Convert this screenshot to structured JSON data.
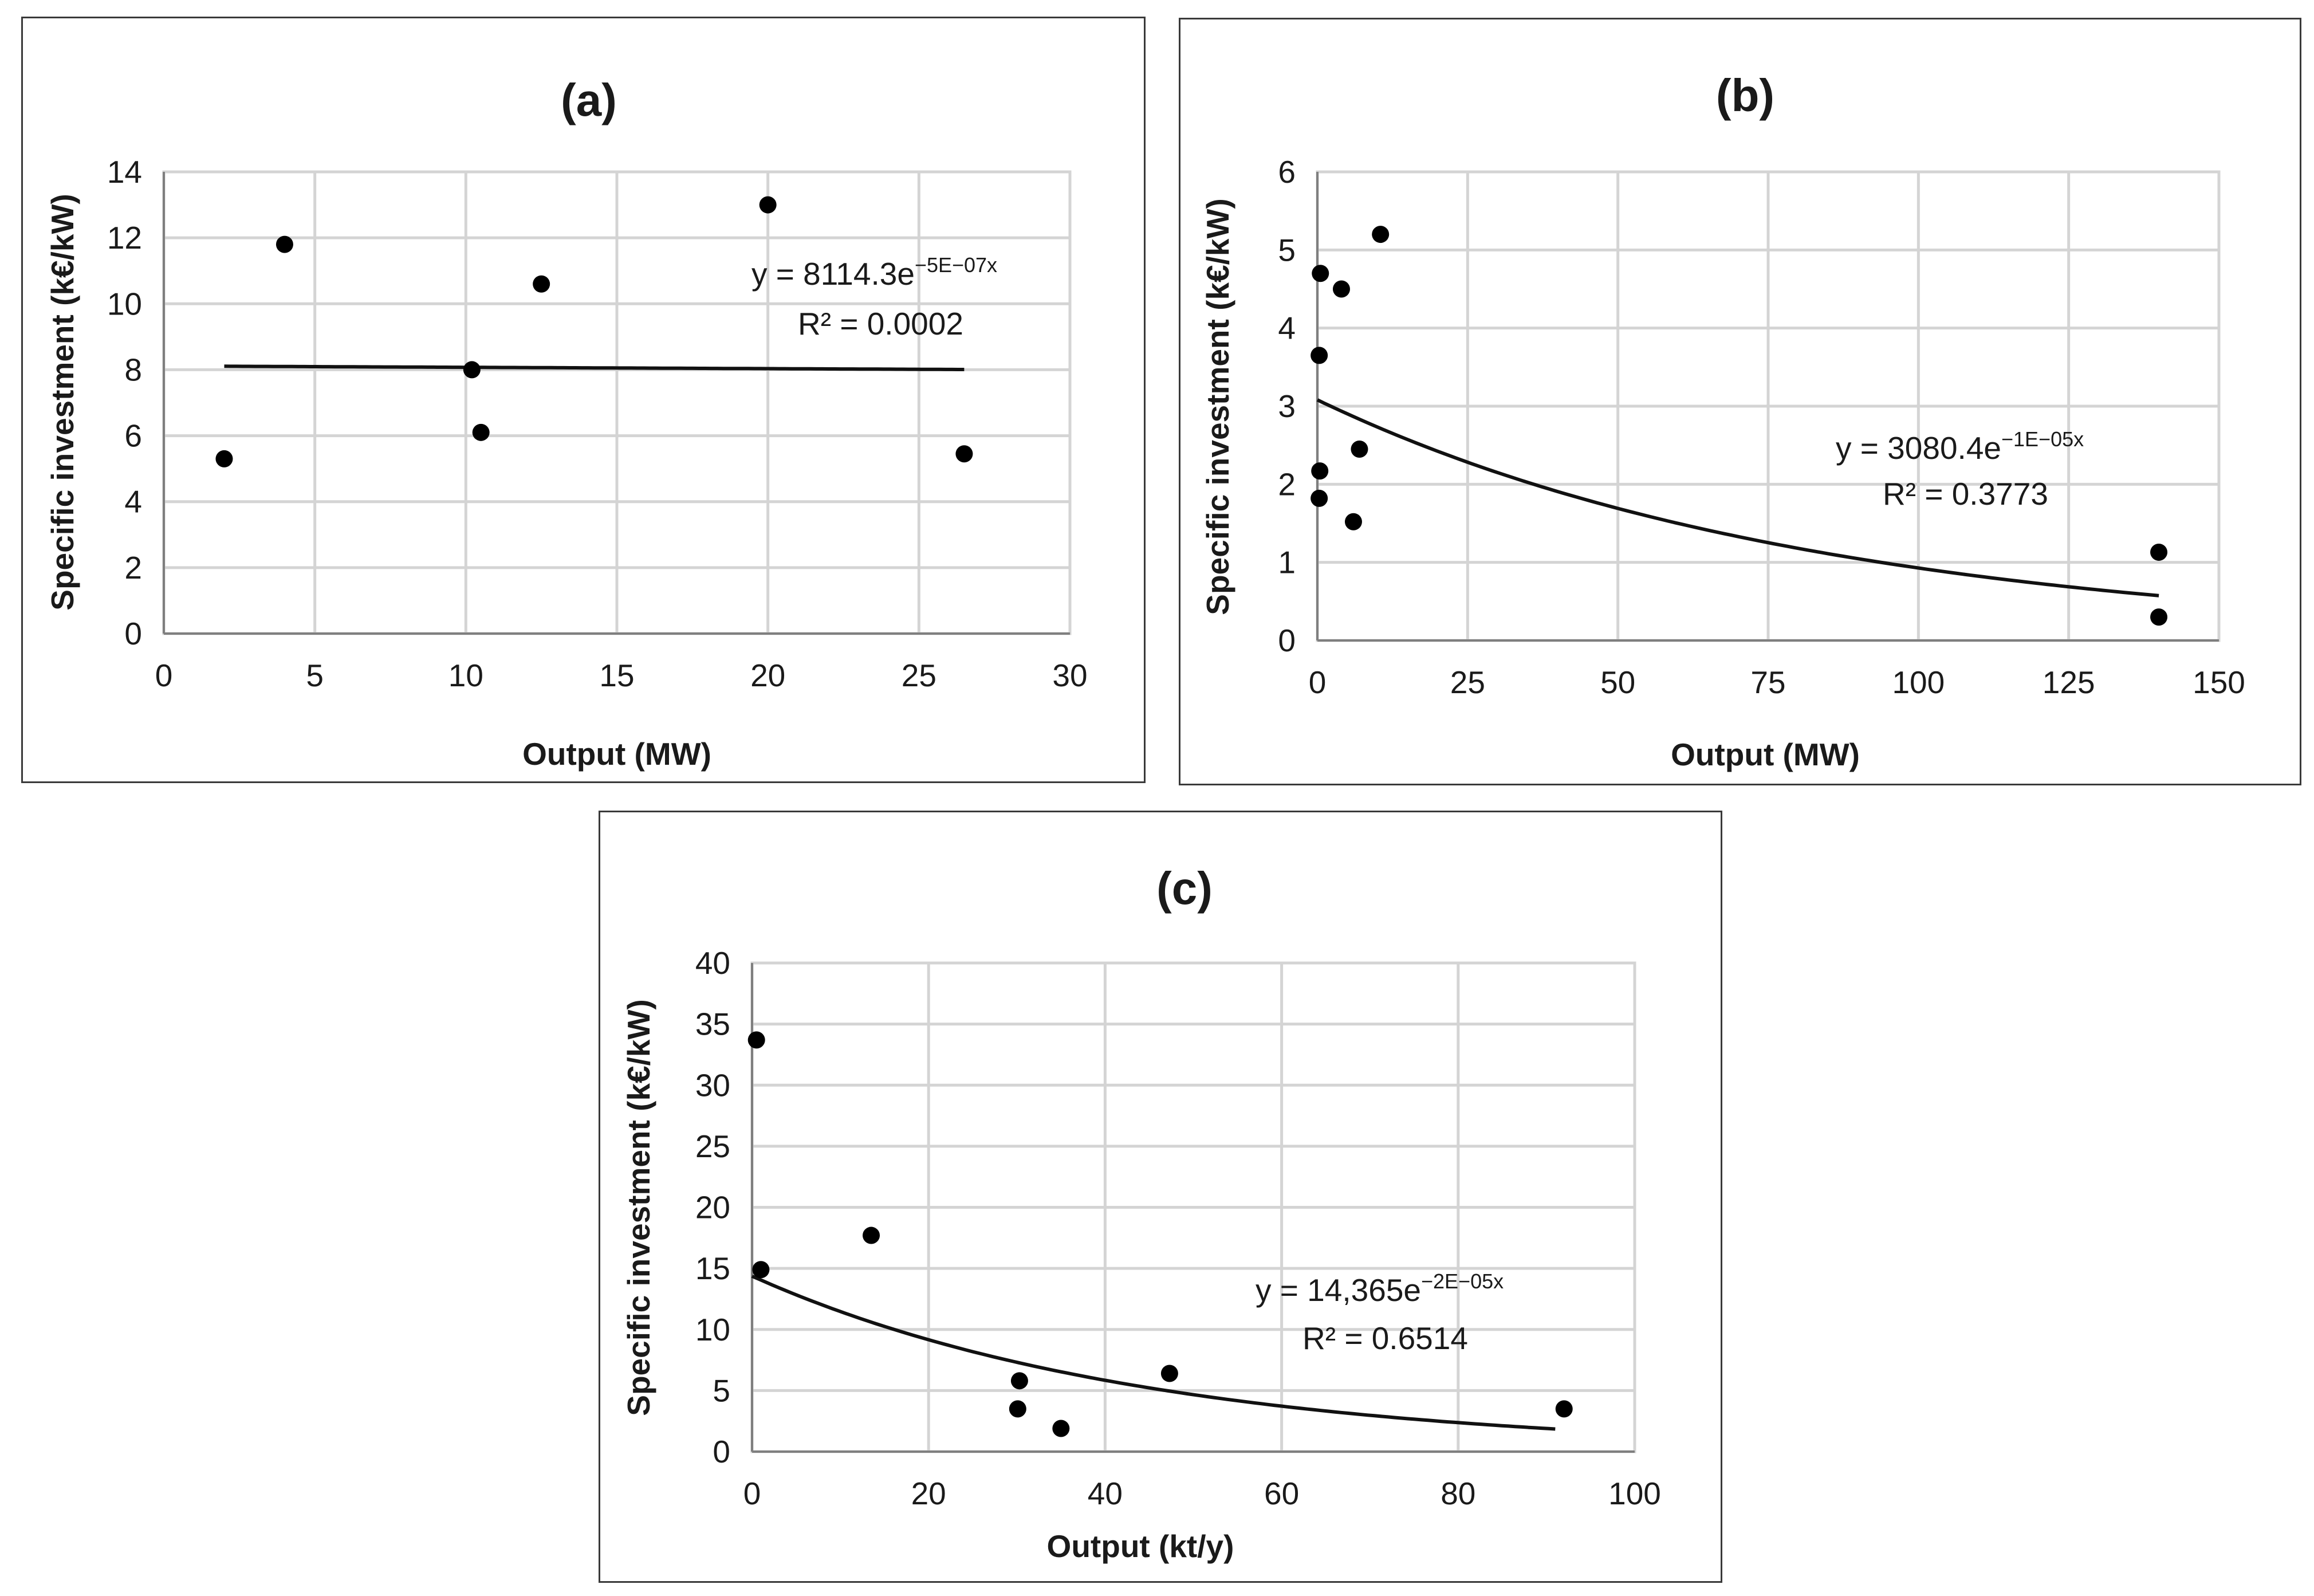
{
  "chart_data": [
    {
      "type": "scatter",
      "title": "(a)",
      "xlabel": "Output (MW)",
      "ylabel": "Specific investment (k€/kW)",
      "xlim": [
        0,
        30
      ],
      "ylim": [
        0,
        14
      ],
      "xticks": [
        0,
        5,
        10,
        15,
        20,
        25,
        30
      ],
      "yticks": [
        0,
        2,
        4,
        6,
        8,
        10,
        12,
        14
      ],
      "grid": true,
      "points": [
        {
          "x": 2,
          "y": 5.3
        },
        {
          "x": 4,
          "y": 11.8
        },
        {
          "x": 10.2,
          "y": 8.0
        },
        {
          "x": 10.5,
          "y": 6.1
        },
        {
          "x": 12.5,
          "y": 10.6
        },
        {
          "x": 20,
          "y": 13.0
        },
        {
          "x": 26.5,
          "y": 5.45
        }
      ],
      "trendline": {
        "type": "exponential",
        "a": 8114.3,
        "b": -5e-07,
        "x_scale": 1000,
        "x_range": [
          2,
          26.5
        ],
        "equation_prefix": "y = 8114.3e",
        "equation_exponent": "−5E−07x",
        "r2_text": "R² = 0.0002"
      }
    },
    {
      "type": "scatter",
      "title": "(b)",
      "xlabel": "Output (MW)",
      "ylabel": "Specific investment (k€/kW)",
      "xlim": [
        0,
        150
      ],
      "ylim": [
        0,
        6
      ],
      "xticks": [
        0,
        25,
        50,
        75,
        100,
        125,
        150
      ],
      "yticks": [
        0,
        1,
        2,
        3,
        4,
        5,
        6
      ],
      "grid": true,
      "points": [
        {
          "x": 0.5,
          "y": 4.7
        },
        {
          "x": 0.3,
          "y": 3.65
        },
        {
          "x": 0.4,
          "y": 2.17
        },
        {
          "x": 0.3,
          "y": 1.82
        },
        {
          "x": 4,
          "y": 4.5
        },
        {
          "x": 6,
          "y": 1.52
        },
        {
          "x": 7,
          "y": 2.45
        },
        {
          "x": 10.5,
          "y": 5.2
        },
        {
          "x": 140,
          "y": 1.13
        },
        {
          "x": 140,
          "y": 0.3
        }
      ],
      "trendline": {
        "type": "exponential",
        "a": 3080.4,
        "b": -1.2e-05,
        "x_scale": 1000,
        "x_range": [
          0,
          140
        ],
        "equation_prefix": "y = 3080.4e",
        "equation_exponent": "−1E−05x",
        "r2_text": "R² = 0.3773"
      }
    },
    {
      "type": "scatter",
      "title": "(c)",
      "xlabel": "Output (kt/y)",
      "ylabel": "Specific investment (k€/kW)",
      "xlim": [
        0,
        100
      ],
      "ylim": [
        0,
        40
      ],
      "xticks": [
        0,
        20,
        40,
        60,
        80,
        100
      ],
      "yticks": [
        0,
        5,
        10,
        15,
        20,
        25,
        30,
        35,
        40
      ],
      "grid": true,
      "points": [
        {
          "x": 0.5,
          "y": 33.7
        },
        {
          "x": 1,
          "y": 14.9
        },
        {
          "x": 13.5,
          "y": 17.7
        },
        {
          "x": 30.3,
          "y": 5.8
        },
        {
          "x": 30.1,
          "y": 3.5
        },
        {
          "x": 35,
          "y": 1.9
        },
        {
          "x": 47.3,
          "y": 6.4
        },
        {
          "x": 92,
          "y": 3.5
        }
      ],
      "trendline": {
        "type": "exponential",
        "a": 14.365,
        "b": -0.0225,
        "x_scale": 1,
        "x_range": [
          0,
          91
        ],
        "equation_prefix": "y = 14,365e",
        "equation_exponent": "−2E−05x",
        "r2_text": "R² = 0.6514"
      }
    }
  ]
}
